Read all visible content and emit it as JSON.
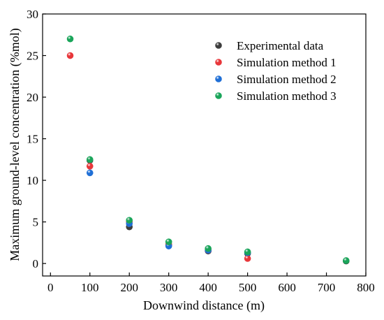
{
  "colors": {
    "experimental": "#3d3d3d",
    "method1": "#e8363a",
    "method2": "#1f6fd6",
    "method3": "#1aa55a"
  },
  "chart_data": {
    "type": "scatter",
    "xlabel": "Downwind distance (m)",
    "ylabel": "Maximum ground-level concentration (%mol)",
    "xlim": [
      -20,
      800
    ],
    "ylim": [
      -1.5,
      30
    ],
    "x_ticks": [
      0,
      100,
      200,
      300,
      400,
      500,
      600,
      700,
      800
    ],
    "y_ticks": [
      0,
      5,
      10,
      15,
      20,
      25,
      30
    ],
    "grid": false,
    "legend_position": "top-right",
    "series": [
      {
        "name": "Experimental data",
        "color_key": "experimental",
        "points": [
          [
            100,
            12.4
          ],
          [
            200,
            4.4
          ],
          [
            300,
            2.2
          ],
          [
            400,
            1.5
          ],
          [
            500,
            1.2
          ],
          [
            750,
            0.3
          ]
        ]
      },
      {
        "name": "Simulation method 1",
        "color_key": "method1",
        "points": [
          [
            50,
            25.0
          ],
          [
            100,
            11.7
          ],
          [
            200,
            5.0
          ],
          [
            300,
            2.3
          ],
          [
            400,
            1.6
          ],
          [
            500,
            0.6
          ]
        ]
      },
      {
        "name": "Simulation method 2",
        "color_key": "method2",
        "points": [
          [
            100,
            10.9
          ],
          [
            200,
            4.8
          ],
          [
            300,
            2.1
          ],
          [
            400,
            1.6
          ],
          [
            500,
            1.3
          ]
        ]
      },
      {
        "name": "Simulation method 3",
        "color_key": "method3",
        "points": [
          [
            50,
            27.0
          ],
          [
            100,
            12.5
          ],
          [
            200,
            5.2
          ],
          [
            300,
            2.6
          ],
          [
            400,
            1.8
          ],
          [
            500,
            1.4
          ],
          [
            750,
            0.35
          ]
        ]
      }
    ]
  }
}
